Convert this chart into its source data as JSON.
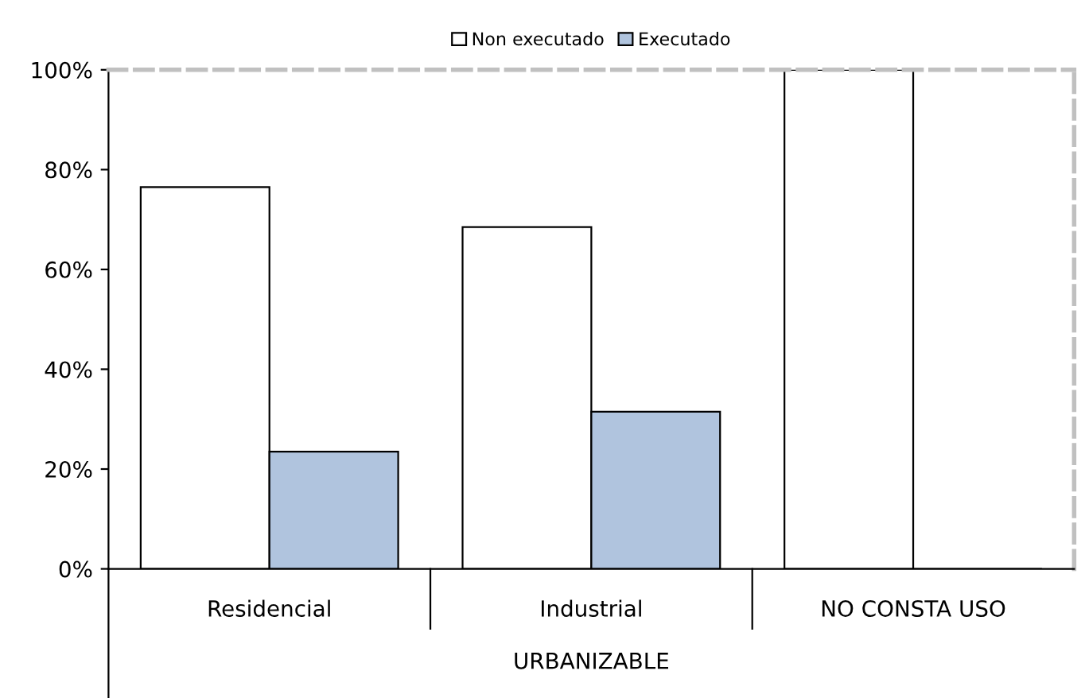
{
  "chart_data": {
    "type": "bar",
    "categories": [
      "Residencial",
      "Industrial",
      "NO CONSTA USO"
    ],
    "xlabel": "URBANIZABLE",
    "series": [
      {
        "name": "Non executado",
        "color": "#ffffff",
        "values": [
          76.5,
          68.5,
          100
        ]
      },
      {
        "name": "Executado",
        "color": "#b0c4de",
        "values": [
          23.5,
          31.5,
          0
        ]
      }
    ],
    "ylim": [
      0,
      100
    ],
    "yticks": [
      {
        "value": 0,
        "label": "0%"
      },
      {
        "value": 20,
        "label": "20%"
      },
      {
        "value": 40,
        "label": "40%"
      },
      {
        "value": 60,
        "label": "60%"
      },
      {
        "value": 80,
        "label": "80%"
      },
      {
        "value": 100,
        "label": "100%"
      }
    ],
    "grid": false,
    "legend": "top"
  }
}
